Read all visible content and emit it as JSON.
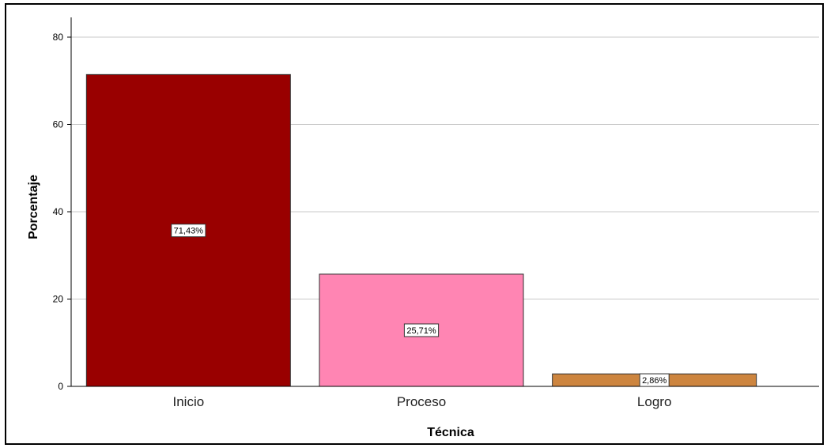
{
  "chart_data": {
    "type": "bar",
    "title": "",
    "xlabel": "Técnica",
    "ylabel": "Porcentaje",
    "categories": [
      "Inicio",
      "Proceso",
      "Logro"
    ],
    "values": [
      71.43,
      25.71,
      2.86
    ],
    "data_labels": [
      "71,43%",
      "25,71%",
      "2,86%"
    ],
    "colors": [
      "#990000",
      "#ff85b3",
      "#cd853f"
    ],
    "ylim": [
      0,
      80
    ],
    "yticks": [
      "0",
      "20",
      "40",
      "60",
      "80"
    ],
    "ytick_values": [
      0,
      20,
      40,
      60,
      80
    ],
    "grid": true,
    "legend": "none"
  }
}
